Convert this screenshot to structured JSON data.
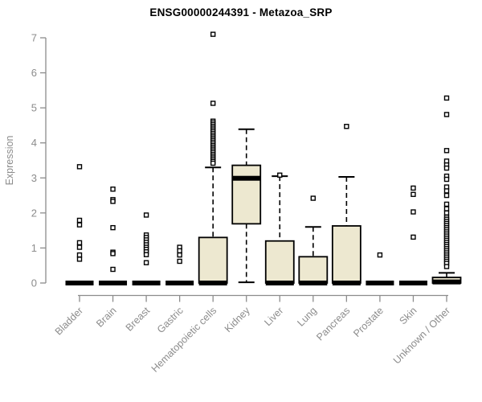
{
  "title": "ENSG00000244391 - Metazoa_SRP",
  "chart_data": {
    "type": "box",
    "title": "ENSG00000244391 - Metazoa_SRP",
    "xlabel": "",
    "ylabel": "Expression",
    "ylim": [
      0,
      7
    ],
    "yticks": [
      0,
      1,
      2,
      3,
      4,
      5,
      6,
      7
    ],
    "grid": false,
    "legend": "none",
    "categories": [
      "Bladder",
      "Brain",
      "Breast",
      "Gastric",
      "Hematopoietic cells",
      "Kidney",
      "Liver",
      "Lung",
      "Pancreas",
      "Prostate",
      "Skin",
      "Unknown / Other"
    ],
    "boxes": [
      {
        "category": "Bladder",
        "q1": 0,
        "median": 0,
        "q3": 0,
        "whisker_low": 0,
        "whisker_high": 0,
        "outliers": [
          3.32,
          1.79,
          1.66,
          1.15,
          1.02,
          0.8,
          0.68
        ]
      },
      {
        "category": "Brain",
        "q1": 0,
        "median": 0,
        "q3": 0,
        "whisker_low": 0,
        "whisker_high": 0,
        "outliers": [
          2.68,
          2.38,
          2.33,
          1.58,
          0.88,
          0.84,
          0.39
        ]
      },
      {
        "category": "Breast",
        "q1": 0,
        "median": 0,
        "q3": 0,
        "whisker_low": 0,
        "whisker_high": 0,
        "outliers": [
          1.94,
          1.37,
          1.3,
          1.23,
          1.16,
          1.09,
          1.02,
          0.96,
          0.89,
          0.81,
          0.58
        ]
      },
      {
        "category": "Gastric",
        "q1": 0,
        "median": 0,
        "q3": 0,
        "whisker_low": 0,
        "whisker_high": 0,
        "outliers": [
          1.02,
          0.92,
          0.8,
          0.62
        ]
      },
      {
        "category": "Hematopoietic cells",
        "q1": 0,
        "median": 0,
        "q3": 1.3,
        "whisker_low": 0,
        "whisker_high": 3.3,
        "outliers": [
          7.1,
          5.13,
          4.62,
          4.57,
          4.52,
          4.47,
          4.42,
          4.37,
          4.32,
          4.27,
          4.22,
          4.17,
          4.12,
          4.07,
          4.02,
          3.97,
          3.92,
          3.87,
          3.82,
          3.77,
          3.72,
          3.67,
          3.62,
          3.57,
          3.52,
          3.47,
          3.42
        ]
      },
      {
        "category": "Kidney",
        "q1": 1.69,
        "median": 2.99,
        "q3": 3.36,
        "whisker_low": 0.02,
        "whisker_high": 4.39,
        "outliers": []
      },
      {
        "category": "Liver",
        "q1": 0,
        "median": 0,
        "q3": 1.2,
        "whisker_low": 0,
        "whisker_high": 3.05,
        "outliers": [
          3.08
        ]
      },
      {
        "category": "Lung",
        "q1": 0,
        "median": 0,
        "q3": 0.75,
        "whisker_low": 0,
        "whisker_high": 1.6,
        "outliers": [
          2.42
        ]
      },
      {
        "category": "Pancreas",
        "q1": 0,
        "median": 0,
        "q3": 1.63,
        "whisker_low": 0,
        "whisker_high": 3.03,
        "outliers": [
          4.47
        ]
      },
      {
        "category": "Prostate",
        "q1": 0,
        "median": 0,
        "q3": 0,
        "whisker_low": 0,
        "whisker_high": 0,
        "outliers": [
          0.8
        ]
      },
      {
        "category": "Skin",
        "q1": 0,
        "median": 0,
        "q3": 0,
        "whisker_low": 0,
        "whisker_high": 0,
        "outliers": [
          2.71,
          2.53,
          2.03,
          1.31
        ]
      },
      {
        "category": "Unknown / Other",
        "q1": 0,
        "median": 0.03,
        "q3": 0.16,
        "whisker_low": 0,
        "whisker_high": 0.29,
        "outliers": [
          5.28,
          4.81,
          3.78,
          3.48,
          3.37,
          3.28,
          3.05,
          2.96,
          2.74,
          2.63,
          2.5,
          2.25,
          2.12,
          2.0,
          1.88,
          1.82,
          1.76,
          1.7,
          1.64,
          1.58,
          1.52,
          1.46,
          1.4,
          1.34,
          1.28,
          1.22,
          1.16,
          1.1,
          1.04,
          0.98,
          0.92,
          0.86,
          0.8,
          0.74,
          0.68,
          0.62,
          0.56,
          0.47
        ]
      }
    ],
    "colors": {
      "box_fill": "#EDE8D0",
      "box_border": "#000000",
      "median": "#000000",
      "whisker": "#000000",
      "outlier_stroke": "#000000",
      "outlier_fill": "#ffffff",
      "axis": "#8C8C8C",
      "tick_text": "#8C8C8C",
      "title_text": "#000000"
    }
  }
}
